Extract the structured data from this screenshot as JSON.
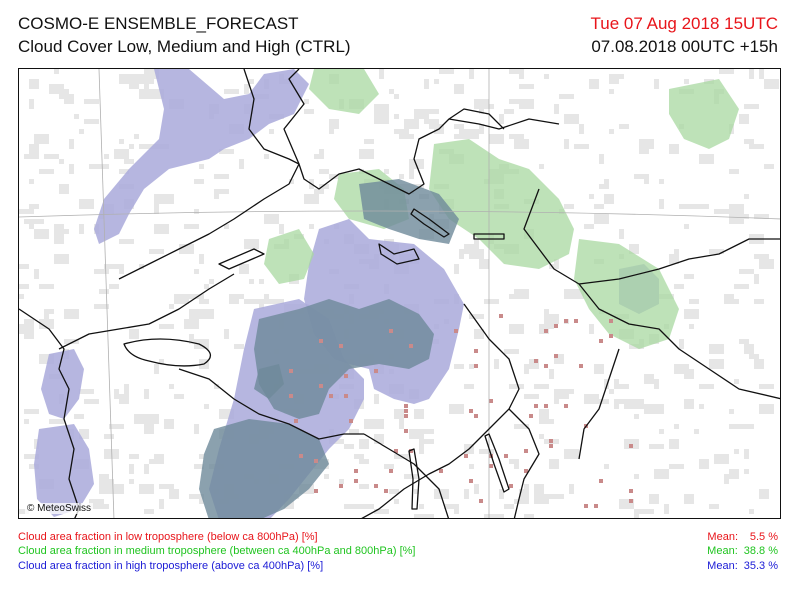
{
  "header": {
    "title": "COSMO-E ENSEMBLE_FORECAST",
    "subtitle": "Cloud Cover Low, Medium and High (CTRL)",
    "valid_time": "Tue 07 Aug 2018 15UTC",
    "run_time": "07.08.2018 00UTC +15h"
  },
  "map": {
    "credit": "© MeteoSwiss",
    "colors": {
      "low_cloud": "#c98a8a",
      "medium_cloud": "#a8d8a0",
      "high_cloud": "#a9a9db",
      "overlap": "#6e8a9a",
      "sparse": "#e6e6e6",
      "border": "#111111",
      "grid": "#b0b0b0"
    }
  },
  "legend": {
    "low": {
      "label": "Cloud area fraction in low troposphere (below ca 800hPa) [%]",
      "mean_label": "Mean:",
      "mean_value": "5.5 %",
      "color": "#e8141a"
    },
    "medium": {
      "label": "Cloud area fraction in medium troposphere (between ca 400hPa and 800hPa) [%]",
      "mean_label": "Mean:",
      "mean_value": "38.8 %",
      "color": "#1fc41f"
    },
    "high": {
      "label": "Cloud area fraction in high troposphere (above ca 400hPa) [%]",
      "mean_label": "Mean:",
      "mean_value": "35.3 %",
      "color": "#1b1bd6"
    }
  }
}
